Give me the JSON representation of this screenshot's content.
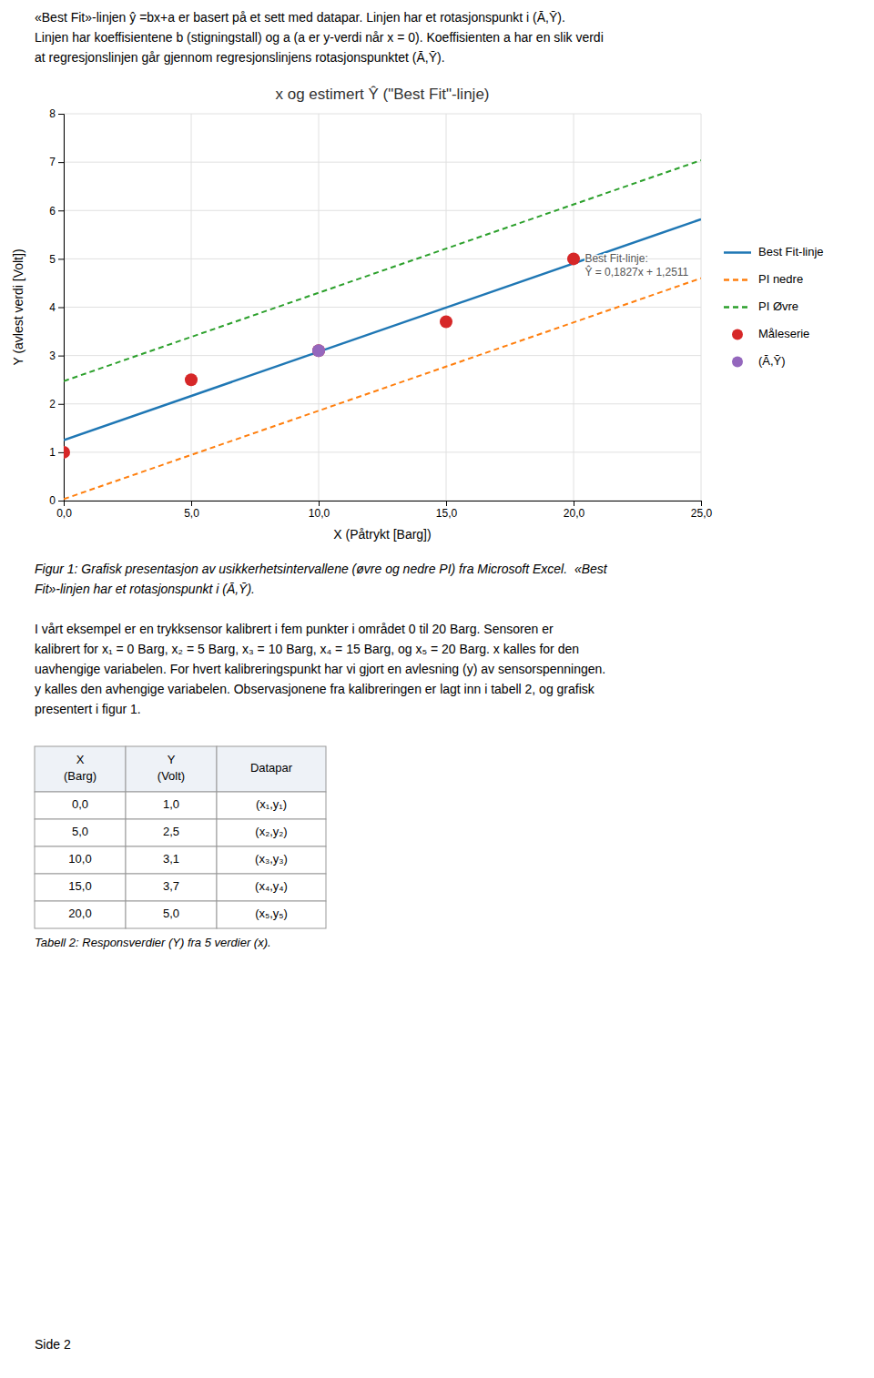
{
  "chart_data": {
    "type": "line",
    "title": "x og estimert Ŷ (\"Best Fit\"-linje)",
    "x_label": "X (Påtrykt [Barg])",
    "y_label": "Y (avlest verdi [Volt])",
    "xlim": [
      0,
      25
    ],
    "ylim": [
      0,
      8
    ],
    "xticks": [
      {
        "value": 0.0,
        "label": "0,0"
      },
      {
        "value": 5.0,
        "label": "5,0"
      },
      {
        "value": 10.0,
        "label": "10,0"
      },
      {
        "value": 15.0,
        "label": "15,0"
      },
      {
        "value": 20.0,
        "label": "20,0"
      },
      {
        "value": 25.0,
        "label": "25,0"
      }
    ],
    "yticks": [
      0,
      1,
      2,
      3,
      4,
      5,
      6,
      7,
      8
    ],
    "grid": true,
    "legend": "right",
    "series": [
      {
        "name": "Best Fit-linje",
        "type": "line",
        "line_style": "solid",
        "x": [
          0,
          25
        ],
        "values": [
          1.2511,
          5.8186
        ]
      },
      {
        "name": "PI nedre",
        "type": "line",
        "line_style": "dashed",
        "x": [
          0,
          25
        ],
        "values": [
          0.0311,
          4.5986
        ]
      },
      {
        "name": "PI Øvre",
        "type": "line",
        "line_style": "dashed",
        "x": [
          0,
          25
        ],
        "values": [
          2.4711,
          7.0386
        ]
      },
      {
        "name": "Måleserie",
        "type": "scatter",
        "marker": "circle",
        "x": [
          0,
          5,
          10,
          15,
          20
        ],
        "values": [
          1.0,
          2.5,
          3.1,
          3.7,
          5.0
        ]
      },
      {
        "name": "(Ā,Ȳ)",
        "type": "scatter",
        "marker": "circle",
        "x": [
          10.0
        ],
        "values": [
          3.1
        ]
      }
    ],
    "annotations": [
      {
        "text": [
          "Best Fit-linje:",
          "Ŷ = 0,1827x + 1,2511"
        ],
        "x": 20.3,
        "y": 5.15
      }
    ]
  },
  "page": {
    "header": [
      "«Best Fit»-linjen ŷ =bx+a er basert på et sett med datapar. Linjen har et rotasjonspunkt i (Ā,Ȳ).",
      "Linjen har koeffisientene b (stigningstall) og a (a er y-verdi når x = 0). Koeffisienten a har en slik verdi",
      "at regresjonslinjen går gjennom regresjonslinjens rotasjonspunktet (Ā,Ȳ)."
    ],
    "figure_caption": [
      "Figur 1: Grafisk presentasjon av usikkerhetsintervallene (øvre og nedre PI) fra Microsoft Excel.  «Best",
      "Fit»-linjen har et rotasjonspunkt i (Ā,Ȳ)."
    ],
    "body": [
      "I vårt eksempel er en trykksensor kalibrert i fem punkter i området 0 til 20 Barg. Sensoren er",
      "kalibrert for x₁ = 0 Barg, x₂ = 5 Barg, x₃ = 10 Barg, x₄ = 15 Barg, og x₅ = 20 Barg. x kalles for den",
      "uavhengige variabelen. For hvert kalibreringspunkt har vi gjort en avlesning (y) av sensorspenningen.",
      "y kalles den avhengige variabelen. Observasjonene fra kalibreringen er lagt inn i tabell 2, og grafisk",
      "presentert i figur 1."
    ],
    "table": {
      "columns": [
        [
          "X",
          "(Barg)"
        ],
        [
          "Y",
          "(Volt)"
        ],
        [
          "Datapar"
        ]
      ],
      "rows": [
        [
          "0,0",
          "1,0",
          "(x₁,y₁)"
        ],
        [
          "5,0",
          "2,5",
          "(x₂,y₂)"
        ],
        [
          "10,0",
          "3,1",
          "(x₃,y₃)"
        ],
        [
          "15,0",
          "3,7",
          "(x₄,y₄)"
        ],
        [
          "20,0",
          "5,0",
          "(x₅,y₅)"
        ]
      ],
      "caption": "Tabell 2: Responsverdier (Y) fra 5 verdier (x)."
    },
    "page_number": "Side 2"
  }
}
